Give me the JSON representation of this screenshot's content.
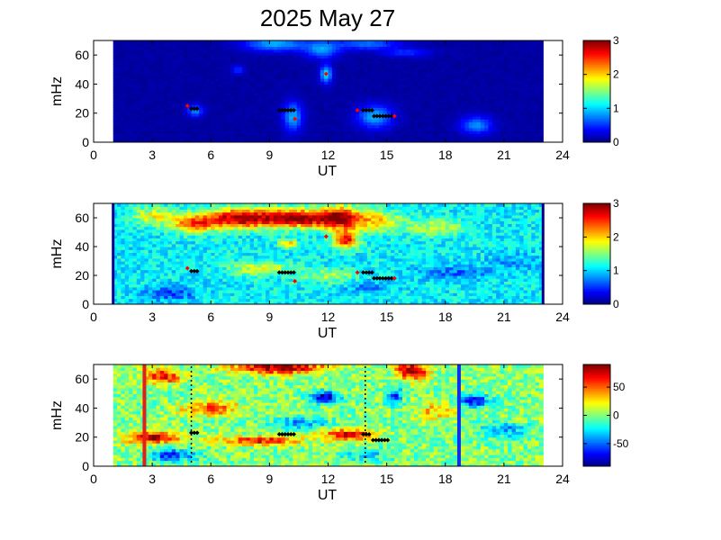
{
  "title": "2025 May 27",
  "colors": {
    "background": "#ffffff",
    "axis": "#000000",
    "detection_marker": "#000000",
    "event_marker": "#ff0000",
    "red_line": "#e0201a",
    "blue_line": "#1030e8"
  },
  "chart_data": [
    {
      "type": "heatmap",
      "panel": "top",
      "xlabel": "UT",
      "ylabel": "mHz",
      "xlim": [
        0,
        24
      ],
      "ylim": [
        0,
        70
      ],
      "xticks": [
        "0",
        "3",
        "6",
        "9",
        "12",
        "15",
        "18",
        "21",
        "24"
      ],
      "yticks": [
        "0",
        "20",
        "40",
        "60"
      ],
      "data_range_ut": [
        1,
        23
      ],
      "colorbar": {
        "min": 0,
        "max": 3,
        "ticks": [
          "0",
          "1",
          "2",
          "3"
        ],
        "colormap": "jet"
      },
      "background_level": 0.1,
      "blobs": [
        {
          "ut": 5.2,
          "mhz": 22,
          "level": 0.8,
          "w": 0.4,
          "h": 4
        },
        {
          "ut": 9.3,
          "mhz": 68,
          "level": 0.9,
          "w": 1.6,
          "h": 5
        },
        {
          "ut": 10.2,
          "mhz": 18,
          "level": 0.9,
          "w": 0.5,
          "h": 10
        },
        {
          "ut": 11.7,
          "mhz": 64,
          "level": 0.8,
          "w": 0.9,
          "h": 6
        },
        {
          "ut": 11.9,
          "mhz": 47,
          "level": 1.1,
          "w": 0.3,
          "h": 6
        },
        {
          "ut": 14.4,
          "mhz": 18,
          "level": 0.9,
          "w": 0.9,
          "h": 8
        },
        {
          "ut": 14.0,
          "mhz": 68,
          "level": 0.7,
          "w": 1.6,
          "h": 4
        },
        {
          "ut": 19.6,
          "mhz": 12,
          "level": 0.8,
          "w": 0.8,
          "h": 6
        },
        {
          "ut": 16.0,
          "mhz": 62,
          "level": 0.5,
          "w": 1.2,
          "h": 3
        },
        {
          "ut": 7.4,
          "mhz": 50,
          "level": 0.5,
          "w": 0.3,
          "h": 3
        }
      ]
    },
    {
      "type": "heatmap",
      "panel": "middle",
      "xlabel": "UT",
      "ylabel": "mHz",
      "xlim": [
        0,
        24
      ],
      "ylim": [
        0,
        70
      ],
      "xticks": [
        "0",
        "3",
        "6",
        "9",
        "12",
        "15",
        "18",
        "21",
        "24"
      ],
      "yticks": [
        "0",
        "20",
        "40",
        "60"
      ],
      "data_range_ut": [
        1,
        23
      ],
      "colorbar": {
        "min": 0,
        "max": 3,
        "ticks": [
          "0",
          "1",
          "2",
          "3"
        ],
        "colormap": "jet"
      },
      "background_level": 1.1,
      "blobs": [
        {
          "ut": 7.5,
          "mhz": 60,
          "level": 2.9,
          "w": 2.0,
          "h": 7
        },
        {
          "ut": 10.5,
          "mhz": 60,
          "level": 2.9,
          "w": 1.6,
          "h": 6
        },
        {
          "ut": 12.6,
          "mhz": 60,
          "level": 2.8,
          "w": 1.1,
          "h": 8
        },
        {
          "ut": 12.9,
          "mhz": 45,
          "level": 2.7,
          "w": 0.6,
          "h": 6
        },
        {
          "ut": 5.0,
          "mhz": 56,
          "level": 2.2,
          "w": 1.2,
          "h": 6
        },
        {
          "ut": 14.5,
          "mhz": 58,
          "level": 2.0,
          "w": 1.2,
          "h": 7
        },
        {
          "ut": 10.0,
          "mhz": 42,
          "level": 2.1,
          "w": 0.5,
          "h": 3
        },
        {
          "ut": 3.0,
          "mhz": 62,
          "level": 1.8,
          "w": 1.0,
          "h": 6
        },
        {
          "ut": 17.5,
          "mhz": 54,
          "level": 1.7,
          "w": 1.5,
          "h": 6
        },
        {
          "ut": 8.5,
          "mhz": 25,
          "level": 1.8,
          "w": 1.5,
          "h": 5
        },
        {
          "ut": 12.0,
          "mhz": 20,
          "level": 1.6,
          "w": 1.4,
          "h": 5
        },
        {
          "ut": 4.0,
          "mhz": 8,
          "level": 0.6,
          "w": 1.4,
          "h": 5
        },
        {
          "ut": 18.5,
          "mhz": 22,
          "level": 0.7,
          "w": 1.8,
          "h": 5
        },
        {
          "ut": 21.5,
          "mhz": 30,
          "level": 0.8,
          "w": 1.2,
          "h": 6
        },
        {
          "ut": 14.0,
          "mhz": 12,
          "level": 0.8,
          "w": 1.2,
          "h": 4
        }
      ],
      "edge_lines_ut": [
        1,
        23
      ]
    },
    {
      "type": "heatmap",
      "panel": "bottom",
      "xlabel": "UT",
      "ylabel": "mHz",
      "xlim": [
        0,
        24
      ],
      "ylim": [
        0,
        70
      ],
      "xticks": [
        "0",
        "3",
        "6",
        "9",
        "12",
        "15",
        "18",
        "21",
        "24"
      ],
      "yticks": [
        "0",
        "20",
        "40",
        "60"
      ],
      "data_range_ut": [
        1,
        23
      ],
      "colorbar": {
        "min": -90,
        "max": 90,
        "ticks": [
          "50",
          "0",
          "-50"
        ],
        "tick_values": [
          50,
          0,
          -50
        ],
        "colormap": "jet"
      },
      "background_level": 0,
      "blobs": [
        {
          "ut": 9.5,
          "mhz": 68,
          "level": 90,
          "w": 2.4,
          "h": 4
        },
        {
          "ut": 16.3,
          "mhz": 66,
          "level": 90,
          "w": 0.8,
          "h": 6
        },
        {
          "ut": 3.5,
          "mhz": 62,
          "level": 70,
          "w": 1.0,
          "h": 5
        },
        {
          "ut": 3.0,
          "mhz": 20,
          "level": 80,
          "w": 1.4,
          "h": 4
        },
        {
          "ut": 8.5,
          "mhz": 18,
          "level": 70,
          "w": 2.0,
          "h": 3
        },
        {
          "ut": 13.0,
          "mhz": 22,
          "level": 70,
          "w": 1.4,
          "h": 4
        },
        {
          "ut": 6.0,
          "mhz": 40,
          "level": 55,
          "w": 1.5,
          "h": 5
        },
        {
          "ut": 11.8,
          "mhz": 48,
          "level": -80,
          "w": 0.7,
          "h": 4
        },
        {
          "ut": 15.4,
          "mhz": 48,
          "level": -60,
          "w": 0.4,
          "h": 6
        },
        {
          "ut": 4.0,
          "mhz": 8,
          "level": -60,
          "w": 1.2,
          "h": 4
        },
        {
          "ut": 10.5,
          "mhz": 30,
          "level": -40,
          "w": 1.5,
          "h": 4
        },
        {
          "ut": 19.5,
          "mhz": 45,
          "level": -70,
          "w": 0.8,
          "h": 4
        },
        {
          "ut": 21.0,
          "mhz": 25,
          "level": -40,
          "w": 1.2,
          "h": 5
        },
        {
          "ut": 14.0,
          "mhz": 8,
          "level": -30,
          "w": 1.2,
          "h": 4
        },
        {
          "ut": 17.5,
          "mhz": 38,
          "level": 35,
          "w": 1.0,
          "h": 6
        }
      ],
      "vertical_lines": [
        {
          "ut": 2.6,
          "color": "red"
        },
        {
          "ut": 18.7,
          "color": "blue"
        }
      ],
      "dotted_lines_ut": [
        5.0,
        13.9
      ]
    }
  ],
  "markers": {
    "detection_points": [
      {
        "ut": 5.0,
        "mhz": 23
      },
      {
        "ut": 5.15,
        "mhz": 23
      },
      {
        "ut": 5.3,
        "mhz": 23
      },
      {
        "ut": 9.5,
        "mhz": 22
      },
      {
        "ut": 9.65,
        "mhz": 22
      },
      {
        "ut": 9.8,
        "mhz": 22
      },
      {
        "ut": 9.95,
        "mhz": 22
      },
      {
        "ut": 10.1,
        "mhz": 22
      },
      {
        "ut": 10.25,
        "mhz": 22
      },
      {
        "ut": 13.8,
        "mhz": 22
      },
      {
        "ut": 13.95,
        "mhz": 22
      },
      {
        "ut": 14.1,
        "mhz": 22
      },
      {
        "ut": 14.25,
        "mhz": 22
      },
      {
        "ut": 14.35,
        "mhz": 18
      },
      {
        "ut": 14.5,
        "mhz": 18
      },
      {
        "ut": 14.65,
        "mhz": 18
      },
      {
        "ut": 14.8,
        "mhz": 18
      },
      {
        "ut": 14.95,
        "mhz": 18
      },
      {
        "ut": 15.1,
        "mhz": 18
      },
      {
        "ut": 15.25,
        "mhz": 18
      }
    ],
    "event_points": [
      {
        "ut": 4.8,
        "mhz": 25
      },
      {
        "ut": 10.3,
        "mhz": 16
      },
      {
        "ut": 11.9,
        "mhz": 47
      },
      {
        "ut": 13.5,
        "mhz": 22
      },
      {
        "ut": 15.4,
        "mhz": 18
      }
    ],
    "bottom_panel_detection_points": [
      {
        "ut": 5.0,
        "mhz": 23
      },
      {
        "ut": 5.15,
        "mhz": 23
      },
      {
        "ut": 5.3,
        "mhz": 23
      },
      {
        "ut": 9.5,
        "mhz": 22
      },
      {
        "ut": 9.65,
        "mhz": 22
      },
      {
        "ut": 9.8,
        "mhz": 22
      },
      {
        "ut": 9.95,
        "mhz": 22
      },
      {
        "ut": 10.1,
        "mhz": 22
      },
      {
        "ut": 10.25,
        "mhz": 22
      },
      {
        "ut": 13.8,
        "mhz": 22
      },
      {
        "ut": 13.95,
        "mhz": 22
      },
      {
        "ut": 14.1,
        "mhz": 22
      },
      {
        "ut": 14.3,
        "mhz": 18
      },
      {
        "ut": 14.45,
        "mhz": 18
      },
      {
        "ut": 14.6,
        "mhz": 18
      },
      {
        "ut": 14.75,
        "mhz": 18
      },
      {
        "ut": 14.9,
        "mhz": 18
      },
      {
        "ut": 15.05,
        "mhz": 18
      }
    ]
  }
}
